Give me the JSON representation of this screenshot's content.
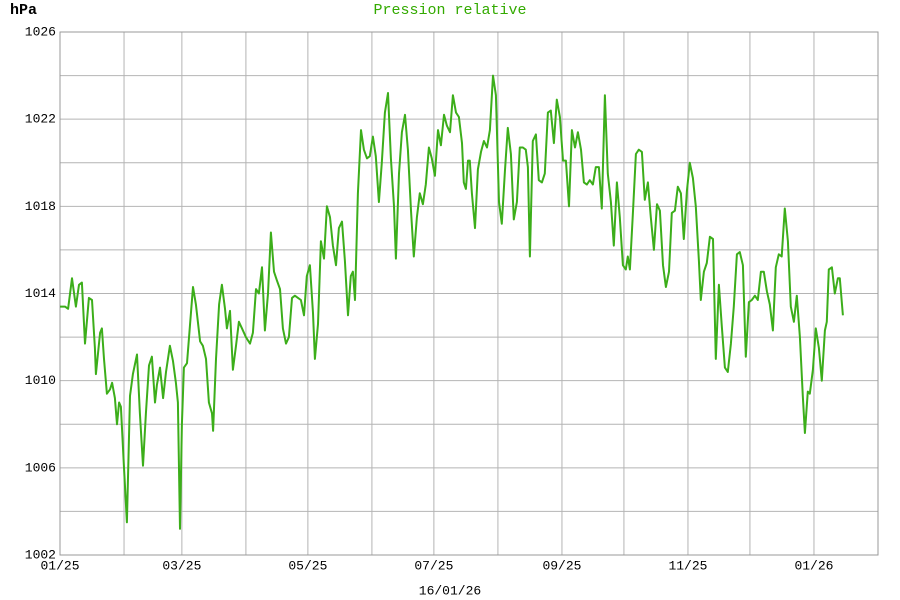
{
  "chart_data": {
    "type": "line",
    "title": "Pression relative",
    "y_label": "hPa",
    "x_label": "16/01/26",
    "color": "#3cae1a",
    "title_color": "#33aa00",
    "grid": true,
    "xlim": [
      0,
      396
    ],
    "xticks": [
      {
        "value": 0,
        "label": "01/25"
      },
      {
        "value": 59,
        "label": "03/25"
      },
      {
        "value": 120,
        "label": "05/25"
      },
      {
        "value": 181,
        "label": "07/25"
      },
      {
        "value": 243,
        "label": "09/25"
      },
      {
        "value": 304,
        "label": "11/25"
      },
      {
        "value": 365,
        "label": "01/26"
      }
    ],
    "x_minor_ticks": [
      31,
      90,
      151,
      212,
      273,
      334
    ],
    "ylim": [
      1002,
      1026
    ],
    "yticks": [
      1002,
      1006,
      1010,
      1014,
      1018,
      1022,
      1026
    ],
    "y_minor_ticks": [
      1004,
      1008,
      1012,
      1016,
      1020,
      1024
    ],
    "x": [
      0,
      2.4,
      3.9,
      5.8,
      7.7,
      9.2,
      10.6,
      12.1,
      14.0,
      15.5,
      16.9,
      17.4,
      19.4,
      20.3,
      21.3,
      22.7,
      24.2,
      25.2,
      26.6,
      27.6,
      28.6,
      29.5,
      31.0,
      32.4,
      33.9,
      35.3,
      37.3,
      38.7,
      40.2,
      41.6,
      43.1,
      44.5,
      46.0,
      46.9,
      48.4,
      49.9,
      51.3,
      53.2,
      54.7,
      56.1,
      57.1,
      58.1,
      59.0,
      60.0,
      61.5,
      62.9,
      64.4,
      65.8,
      67.8,
      69.2,
      70.7,
      72.1,
      73.6,
      74.1,
      75.5,
      77.0,
      78.4,
      79.9,
      80.8,
      82.3,
      83.7,
      85.2,
      86.6,
      88.1,
      90.0,
      92.0,
      93.4,
      94.9,
      96.3,
      97.8,
      99.2,
      100.7,
      102.1,
      103.6,
      105.0,
      106.5,
      107.9,
      109.4,
      110.8,
      112.3,
      113.7,
      115.2,
      116.6,
      118.1,
      119.5,
      121.0,
      122.5,
      123.4,
      124.9,
      126.3,
      127.8,
      129.2,
      130.7,
      132.1,
      133.6,
      135.0,
      136.5,
      137.9,
      139.4,
      140.8,
      141.8,
      142.8,
      144.2,
      145.7,
      147.1,
      148.6,
      150.0,
      151.5,
      152.9,
      154.4,
      155.8,
      157.3,
      158.8,
      160.2,
      161.7,
      162.6,
      164.1,
      165.5,
      167.0,
      168.4,
      169.9,
      171.3,
      172.8,
      174.2,
      175.7,
      177.1,
      178.6,
      180.0,
      181.5,
      183.0,
      184.4,
      185.9,
      187.3,
      188.8,
      190.2,
      191.7,
      193.1,
      194.6,
      195.5,
      196.5,
      197.5,
      198.4,
      199.4,
      200.9,
      202.3,
      203.8,
      205.2,
      206.7,
      208.1,
      209.6,
      211.0,
      212.5,
      213.9,
      215.4,
      216.8,
      218.3,
      219.7,
      221.2,
      222.6,
      224.1,
      225.5,
      226.5,
      227.5,
      228.9,
      230.4,
      231.8,
      233.3,
      234.7,
      236.2,
      237.6,
      239.1,
      240.5,
      242.0,
      243.5,
      244.9,
      246.4,
      247.8,
      249.3,
      250.7,
      252.2,
      253.6,
      255.1,
      256.5,
      258.0,
      259.4,
      260.9,
      262.3,
      263.8,
      265.2,
      266.7,
      268.1,
      269.6,
      271.0,
      272.5,
      273.9,
      274.9,
      275.9,
      277.3,
      278.8,
      280.2,
      281.7,
      283.1,
      284.6,
      286.0,
      287.5,
      289.0,
      290.4,
      291.9,
      293.3,
      294.8,
      296.2,
      297.7,
      299.1,
      300.6,
      302.0,
      303.5,
      304.9,
      306.4,
      307.8,
      309.3,
      310.2,
      311.7,
      313.1,
      314.6,
      316.1,
      317.5,
      319.0,
      320.4,
      321.9,
      323.3,
      324.8,
      326.2,
      327.7,
      329.1,
      330.6,
      332.0,
      333.5,
      334.9,
      336.4,
      337.8,
      339.3,
      340.7,
      342.2,
      343.6,
      345.1,
      346.5,
      348.0,
      349.4,
      350.9,
      352.4,
      353.8,
      355.3,
      356.7,
      358.2,
      359.6,
      360.6,
      362.0,
      363.0,
      364.5,
      365.9,
      367.4,
      368.8,
      370.3,
      371.2,
      372.2,
      373.7,
      375.1,
      376.6,
      377.5,
      379.0
    ],
    "values": [
      1013.4,
      1013.4,
      1013.3,
      1014.7,
      1013.4,
      1014.4,
      1014.5,
      1011.7,
      1013.8,
      1013.7,
      1011.5,
      1010.3,
      1012.2,
      1012.4,
      1011,
      1009.4,
      1009.6,
      1009.9,
      1009.2,
      1008,
      1009,
      1008.8,
      1006,
      1003.5,
      1009.3,
      1010.3,
      1011.2,
      1008.5,
      1006.1,
      1008.5,
      1010.7,
      1011.1,
      1009,
      1009.8,
      1010.6,
      1009.2,
      1010.4,
      1011.6,
      1010.9,
      1009.9,
      1009,
      1003.2,
      1008,
      1010.6,
      1010.8,
      1012.5,
      1014.3,
      1013.5,
      1011.8,
      1011.6,
      1011,
      1009,
      1008.5,
      1007.7,
      1011,
      1013.5,
      1014.4,
      1013.3,
      1012.4,
      1013.2,
      1010.5,
      1011.6,
      1012.7,
      1012.4,
      1012,
      1011.7,
      1012.2,
      1014.2,
      1014,
      1015.2,
      1012.3,
      1014,
      1016.8,
      1015,
      1014.6,
      1014.2,
      1012.4,
      1011.7,
      1012,
      1013.8,
      1013.9,
      1013.8,
      1013.7,
      1013,
      1014.8,
      1015.3,
      1013.1,
      1011,
      1012.6,
      1016.4,
      1015.6,
      1018,
      1017.5,
      1016.2,
      1015.3,
      1017,
      1017.3,
      1015.5,
      1013,
      1014.8,
      1015,
      1013.7,
      1018.6,
      1021.5,
      1020.6,
      1020.2,
      1020.3,
      1021.2,
      1020.3,
      1018.2,
      1020,
      1022.3,
      1023.2,
      1020.2,
      1018,
      1015.6,
      1019.5,
      1021.4,
      1022.2,
      1020.6,
      1017.8,
      1015.7,
      1017.5,
      1018.6,
      1018.1,
      1019,
      1020.7,
      1020.2,
      1019.4,
      1021.5,
      1020.8,
      1022.2,
      1021.7,
      1021.4,
      1023.1,
      1022.3,
      1022.1,
      1020.9,
      1019.1,
      1018.8,
      1020.1,
      1020.1,
      1018.6,
      1017,
      1019.7,
      1020.5,
      1021,
      1020.7,
      1021.5,
      1024,
      1023.1,
      1018.2,
      1017.2,
      1019.6,
      1021.6,
      1020.4,
      1017.4,
      1018.2,
      1020.7,
      1020.7,
      1020.6,
      1019.8,
      1015.7,
      1021,
      1021.3,
      1019.2,
      1019.1,
      1019.5,
      1022.3,
      1022.4,
      1020.9,
      1022.9,
      1022.1,
      1020.1,
      1020.1,
      1018,
      1021.5,
      1020.7,
      1021.4,
      1020.6,
      1019.1,
      1019,
      1019.2,
      1019,
      1019.8,
      1019.8,
      1017.9,
      1023.1,
      1019.5,
      1018.2,
      1016.2,
      1019.1,
      1017.5,
      1015.3,
      1015.1,
      1015.7,
      1015.1,
      1017.6,
      1020.4,
      1020.6,
      1020.5,
      1018.3,
      1019.1,
      1017.5,
      1016,
      1018.1,
      1017.8,
      1015.3,
      1014.3,
      1015,
      1017.7,
      1017.8,
      1018.9,
      1018.6,
      1016.5,
      1018.7,
      1020,
      1019.3,
      1018,
      1015.5,
      1013.7,
      1015,
      1015.4,
      1016.6,
      1016.5,
      1011,
      1014.4,
      1012.5,
      1010.6,
      1010.4,
      1011.7,
      1013.4,
      1015.8,
      1015.9,
      1015.3,
      1011.1,
      1013.6,
      1013.7,
      1013.9,
      1013.7,
      1015,
      1015,
      1014.1,
      1013.5,
      1012.3,
      1015.2,
      1015.8,
      1015.7,
      1017.9,
      1016.4,
      1013.4,
      1012.7,
      1013.9,
      1012,
      1009.3,
      1007.6,
      1009.5,
      1009.4,
      1010.5,
      1012.4,
      1011.5,
      1010,
      1012.3,
      1012.7,
      1015.1,
      1015.2,
      1014,
      1014.7,
      1014.7,
      1013
    ]
  }
}
